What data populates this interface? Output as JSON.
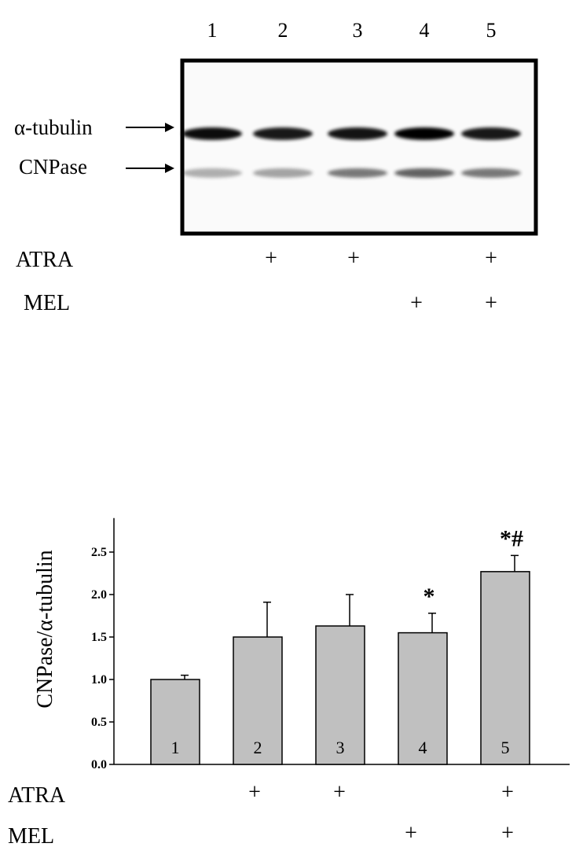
{
  "blot": {
    "lane_numbers": [
      "1",
      "2",
      "3",
      "4",
      "5"
    ],
    "band_labels": {
      "tubulin": "α-tubulin",
      "cnpase": "CNPase"
    },
    "conditions": [
      {
        "label": "ATRA",
        "marks": [
          "",
          "+",
          "+",
          "",
          "+"
        ]
      },
      {
        "label": "MEL",
        "marks": [
          "",
          "",
          "",
          "+",
          "+"
        ]
      }
    ],
    "band_intensity": {
      "tubulin": [
        0.95,
        0.9,
        0.92,
        1.0,
        0.9
      ],
      "cnpase": [
        0.35,
        0.4,
        0.6,
        0.7,
        0.6
      ]
    }
  },
  "chart_data": {
    "type": "bar",
    "categories": [
      "1",
      "2",
      "3",
      "4",
      "5"
    ],
    "values": [
      1.0,
      1.5,
      1.63,
      1.55,
      2.27
    ],
    "errors": [
      0.05,
      0.41,
      0.37,
      0.23,
      0.19
    ],
    "significance": [
      "",
      "",
      "",
      "*",
      "*#"
    ],
    "ylabel": "CNPase/α-tubulin",
    "ylim": [
      0,
      2.9
    ],
    "yticks": [
      "0.0",
      "0.5",
      "1.0",
      "1.5",
      "2.0",
      "2.5"
    ],
    "ytick_values": [
      0,
      0.5,
      1.0,
      1.5,
      2.0,
      2.5
    ],
    "bar_color": "#c0c0c0",
    "conditions": [
      {
        "label": "ATRA",
        "marks": [
          "",
          "+",
          "+",
          "",
          "+"
        ]
      },
      {
        "label": "MEL",
        "marks": [
          "",
          "",
          "",
          "+",
          "+"
        ]
      }
    ]
  }
}
